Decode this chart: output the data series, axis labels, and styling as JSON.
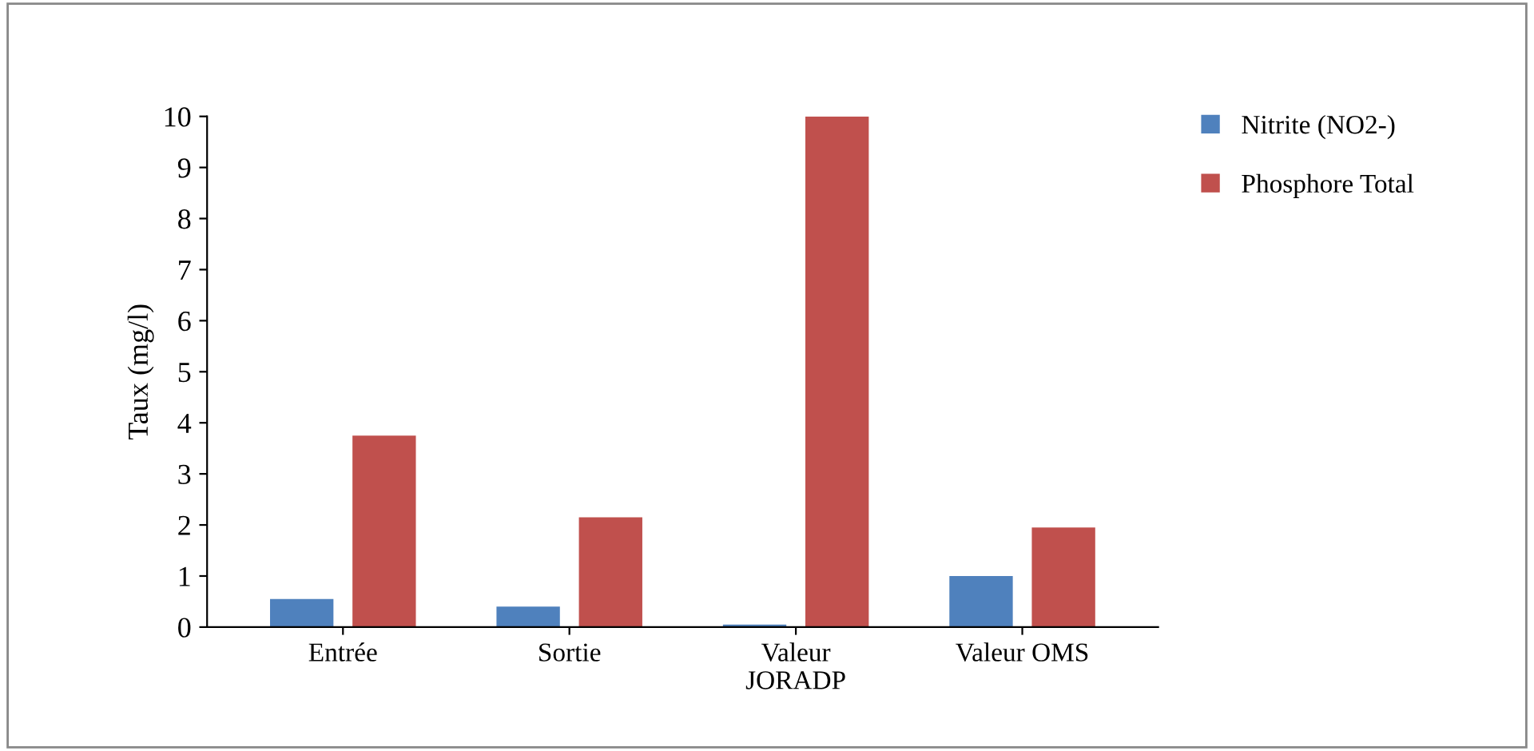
{
  "chart_data": {
    "type": "bar",
    "ylabel": "Taux (mg/l)",
    "categories": [
      "Entrée",
      "Sortie",
      "Valeur\nJORADP",
      "Valeur OMS"
    ],
    "series": [
      {
        "name": "Nitrite (NO2-)",
        "color": "#4f81bd",
        "values": [
          0.55,
          0.4,
          0.05,
          1.0
        ]
      },
      {
        "name": "Phosphore Total",
        "color": "#c0504d",
        "values": [
          3.75,
          2.15,
          10.0,
          1.95
        ]
      }
    ],
    "ylim": [
      0,
      10
    ],
    "yticks": [
      0,
      1,
      2,
      3,
      4,
      5,
      6,
      7,
      8,
      9,
      10
    ],
    "grid": false,
    "legend": "top right"
  }
}
